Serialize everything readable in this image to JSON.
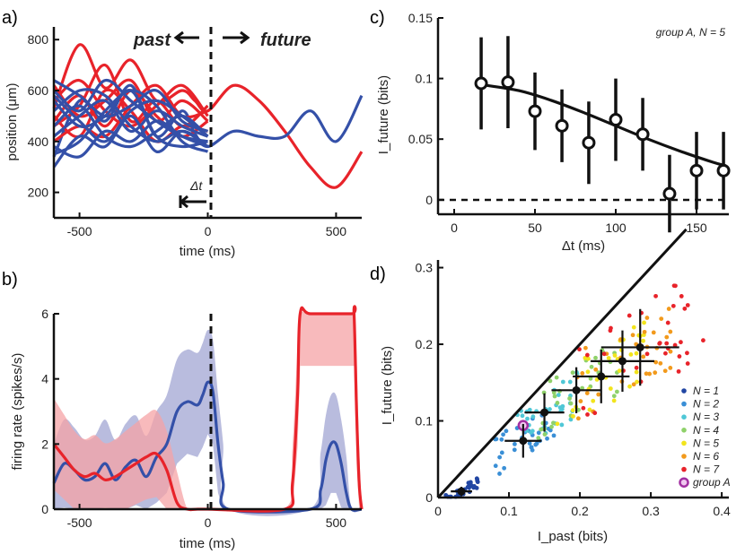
{
  "chart_data": [
    {
      "panel": "a)",
      "type": "line",
      "xlabel": "time (ms)",
      "ylabel": "position (μm)",
      "xlim": [
        -600,
        600
      ],
      "ylim": [
        100,
        850
      ],
      "xticks": [
        "-500",
        "0",
        "500"
      ],
      "yticks": [
        "200",
        "400",
        "600",
        "800"
      ],
      "annotations": {
        "past": "past",
        "future": "future",
        "dt": "Δt"
      },
      "colors": {
        "red": "#e8232a",
        "blue": "#3450a8"
      },
      "series": [
        {
          "color": "red",
          "x": [
            -600,
            -500,
            -400,
            -300,
            -200,
            -100,
            -50,
            0,
            100,
            200,
            300,
            400,
            500,
            600
          ],
          "y": [
            530,
            780,
            610,
            720,
            560,
            600,
            560,
            520,
            620,
            560,
            440,
            300,
            220,
            360
          ]
        },
        {
          "color": "blue",
          "x": [
            -600,
            -500,
            -400,
            -300,
            -200,
            -100,
            -50,
            0,
            100,
            200,
            300,
            400,
            500,
            600
          ],
          "y": [
            340,
            560,
            480,
            620,
            420,
            520,
            430,
            380,
            440,
            420,
            420,
            520,
            400,
            580
          ]
        },
        {
          "color": "red",
          "x": [
            -600,
            -500,
            -400,
            -300,
            -200,
            -100,
            0
          ],
          "y": [
            460,
            540,
            700,
            480,
            560,
            460,
            540
          ]
        },
        {
          "color": "red",
          "x": [
            -600,
            -500,
            -400,
            -300,
            -200,
            -100,
            0
          ],
          "y": [
            620,
            500,
            560,
            640,
            480,
            560,
            480
          ]
        },
        {
          "color": "red",
          "x": [
            -600,
            -500,
            -400,
            -300,
            -200,
            -100,
            0
          ],
          "y": [
            400,
            460,
            420,
            540,
            620,
            500,
            520
          ]
        },
        {
          "color": "red",
          "x": [
            -600,
            -500,
            -400,
            -300,
            -200,
            -100,
            0
          ],
          "y": [
            560,
            640,
            520,
            460,
            540,
            620,
            500
          ]
        },
        {
          "color": "red",
          "x": [
            -600,
            -500,
            -400,
            -300,
            -200,
            -100,
            0
          ],
          "y": [
            500,
            420,
            600,
            520,
            400,
            460,
            440
          ]
        },
        {
          "color": "red",
          "x": [
            -600,
            -500,
            -400,
            -300,
            -200,
            -100,
            0
          ],
          "y": [
            480,
            580,
            460,
            600,
            500,
            420,
            480
          ]
        },
        {
          "color": "blue",
          "x": [
            -600,
            -500,
            -400,
            -300,
            -200,
            -100,
            0
          ],
          "y": [
            300,
            420,
            380,
            500,
            360,
            440,
            380
          ]
        },
        {
          "color": "blue",
          "x": [
            -600,
            -500,
            -400,
            -300,
            -200,
            -100,
            0
          ],
          "y": [
            600,
            520,
            640,
            560,
            480,
            420,
            400
          ]
        },
        {
          "color": "blue",
          "x": [
            -600,
            -500,
            -400,
            -300,
            -200,
            -100,
            0
          ],
          "y": [
            420,
            500,
            560,
            440,
            520,
            460,
            420
          ]
        },
        {
          "color": "blue",
          "x": [
            -600,
            -500,
            -400,
            -300,
            -200,
            -100,
            0
          ],
          "y": [
            560,
            460,
            500,
            600,
            420,
            380,
            400
          ]
        },
        {
          "color": "blue",
          "x": [
            -600,
            -500,
            -400,
            -300,
            -200,
            -100,
            0
          ],
          "y": [
            380,
            340,
            440,
            400,
            480,
            420,
            380
          ]
        },
        {
          "color": "blue",
          "x": [
            -600,
            -500,
            -400,
            -300,
            -200,
            -100,
            0
          ],
          "y": [
            640,
            580,
            500,
            540,
            600,
            480,
            440
          ]
        },
        {
          "color": "blue",
          "x": [
            -600,
            -500,
            -400,
            -300,
            -200,
            -100,
            0
          ],
          "y": [
            460,
            540,
            420,
            380,
            440,
            500,
            420
          ]
        },
        {
          "color": "blue",
          "x": [
            -600,
            -500,
            -400,
            -300,
            -200,
            -100,
            0
          ],
          "y": [
            520,
            600,
            580,
            460,
            400,
            440,
            380
          ]
        },
        {
          "color": "blue",
          "x": [
            -600,
            -500,
            -400,
            -300,
            -200,
            -100,
            0
          ],
          "y": [
            350,
            400,
            520,
            600,
            540,
            400,
            360
          ]
        },
        {
          "color": "blue",
          "x": [
            -600,
            -500,
            -400,
            -300,
            -200,
            -100,
            0
          ],
          "y": [
            580,
            480,
            400,
            520,
            560,
            500,
            420
          ]
        }
      ]
    },
    {
      "panel": "b)",
      "type": "line",
      "xlabel": "time (ms)",
      "ylabel": "firing rate (spikes/s)",
      "xlim": [
        -600,
        600
      ],
      "ylim": [
        0,
        6
      ],
      "xticks": [
        "-500",
        "0",
        "500"
      ],
      "yticks": [
        "0",
        "2",
        "4",
        "6"
      ],
      "colors": {
        "red": "#e8232a",
        "red_band": "#f5a3a6",
        "blue": "#3450a8",
        "blue_band": "#9b9fd0"
      },
      "series": [
        {
          "color": "red",
          "x": [
            -600,
            -560,
            -520,
            -480,
            -440,
            -400,
            -360,
            -320,
            -280,
            -240,
            -200,
            -160,
            -120,
            -80,
            -40,
            0,
            300,
            330,
            350,
            360,
            400,
            560,
            570,
            580,
            590,
            600
          ],
          "y": [
            2.0,
            1.6,
            1.2,
            1.0,
            1.1,
            0.9,
            1.0,
            1.2,
            1.4,
            1.6,
            1.7,
            1.2,
            0.2,
            0,
            0,
            0,
            0,
            0.8,
            3.5,
            6,
            6,
            6,
            6,
            3.0,
            0.8,
            0
          ]
        },
        {
          "color": "blue",
          "x": [
            -600,
            -560,
            -520,
            -480,
            -440,
            -400,
            -360,
            -320,
            -280,
            -240,
            -200,
            -160,
            -120,
            -80,
            -40,
            -20,
            0,
            20,
            40,
            60,
            80,
            400,
            440,
            460,
            480,
            500,
            520,
            540,
            560,
            600
          ],
          "y": [
            0.8,
            1.4,
            1.2,
            0.9,
            1.0,
            1.4,
            0.9,
            1.3,
            1.5,
            1.0,
            1.6,
            2.0,
            3.0,
            3.3,
            3.2,
            3.5,
            3.9,
            3.6,
            2.0,
            0.8,
            0,
            0,
            0.6,
            1.5,
            2.0,
            2.0,
            1.4,
            0.5,
            0,
            0
          ]
        }
      ]
    },
    {
      "panel": "c)",
      "type": "scatter",
      "xlabel": "Δt (ms)",
      "ylabel": "I_future (bits)",
      "annotation": "group A, N = 5",
      "xlim": [
        -10,
        170
      ],
      "ylim": [
        -0.012,
        0.15
      ],
      "xticks": [
        "0",
        "50",
        "100",
        "150"
      ],
      "yticks": [
        "0",
        "0.05",
        "0.1",
        "0.15"
      ],
      "x": [
        16.7,
        33.3,
        50,
        66.7,
        83.3,
        100,
        116.7,
        133.3,
        150,
        166.7
      ],
      "y": [
        0.096,
        0.097,
        0.073,
        0.061,
        0.047,
        0.066,
        0.054,
        0.005,
        0.024,
        0.024
      ],
      "err": [
        0.038,
        0.038,
        0.032,
        0.03,
        0.034,
        0.034,
        0.03,
        0.032,
        0.032,
        0.032
      ],
      "fit_x": [
        16.7,
        40,
        60,
        80,
        100,
        120,
        140,
        160,
        168
      ],
      "fit_y": [
        0.095,
        0.09,
        0.082,
        0.072,
        0.061,
        0.05,
        0.04,
        0.031,
        0.028
      ]
    },
    {
      "panel": "d)",
      "type": "scatter",
      "xlabel": "I_past (bits)",
      "ylabel": "I_future (bits)",
      "xlim": [
        0,
        0.41
      ],
      "ylim": [
        0,
        0.31
      ],
      "xticks": [
        "0",
        "0.1",
        "0.2",
        "0.3",
        "0.4"
      ],
      "yticks": [
        "0",
        "0.1",
        "0.2",
        "0.3"
      ],
      "legend": [
        "N = 1",
        "N = 2",
        "N = 3",
        "N = 4",
        "N = 5",
        "N = 6",
        "N = 7",
        "group A"
      ],
      "colors": [
        "#2146a3",
        "#3a8fd6",
        "#4fc7d6",
        "#8fd16a",
        "#f2e41c",
        "#f29a1c",
        "#e8232a",
        "#a22fa2"
      ],
      "identity_line": [
        [
          0,
          0
        ],
        [
          0.35,
          0.35
        ]
      ],
      "means": [
        {
          "x": 0.033,
          "y": 0.008,
          "xerr": 0.015,
          "yerr": 0.006
        },
        {
          "x": 0.12,
          "y": 0.074,
          "xerr": 0.026,
          "yerr": 0.022
        },
        {
          "x": 0.15,
          "y": 0.111,
          "xerr": 0.028,
          "yerr": 0.025
        },
        {
          "x": 0.195,
          "y": 0.14,
          "xerr": 0.035,
          "yerr": 0.03
        },
        {
          "x": 0.23,
          "y": 0.158,
          "xerr": 0.04,
          "yerr": 0.035
        },
        {
          "x": 0.26,
          "y": 0.178,
          "xerr": 0.045,
          "yerr": 0.04
        },
        {
          "x": 0.285,
          "y": 0.196,
          "xerr": 0.055,
          "yerr": 0.05
        }
      ],
      "group_a_point": {
        "x": 0.12,
        "y": 0.094
      }
    }
  ]
}
